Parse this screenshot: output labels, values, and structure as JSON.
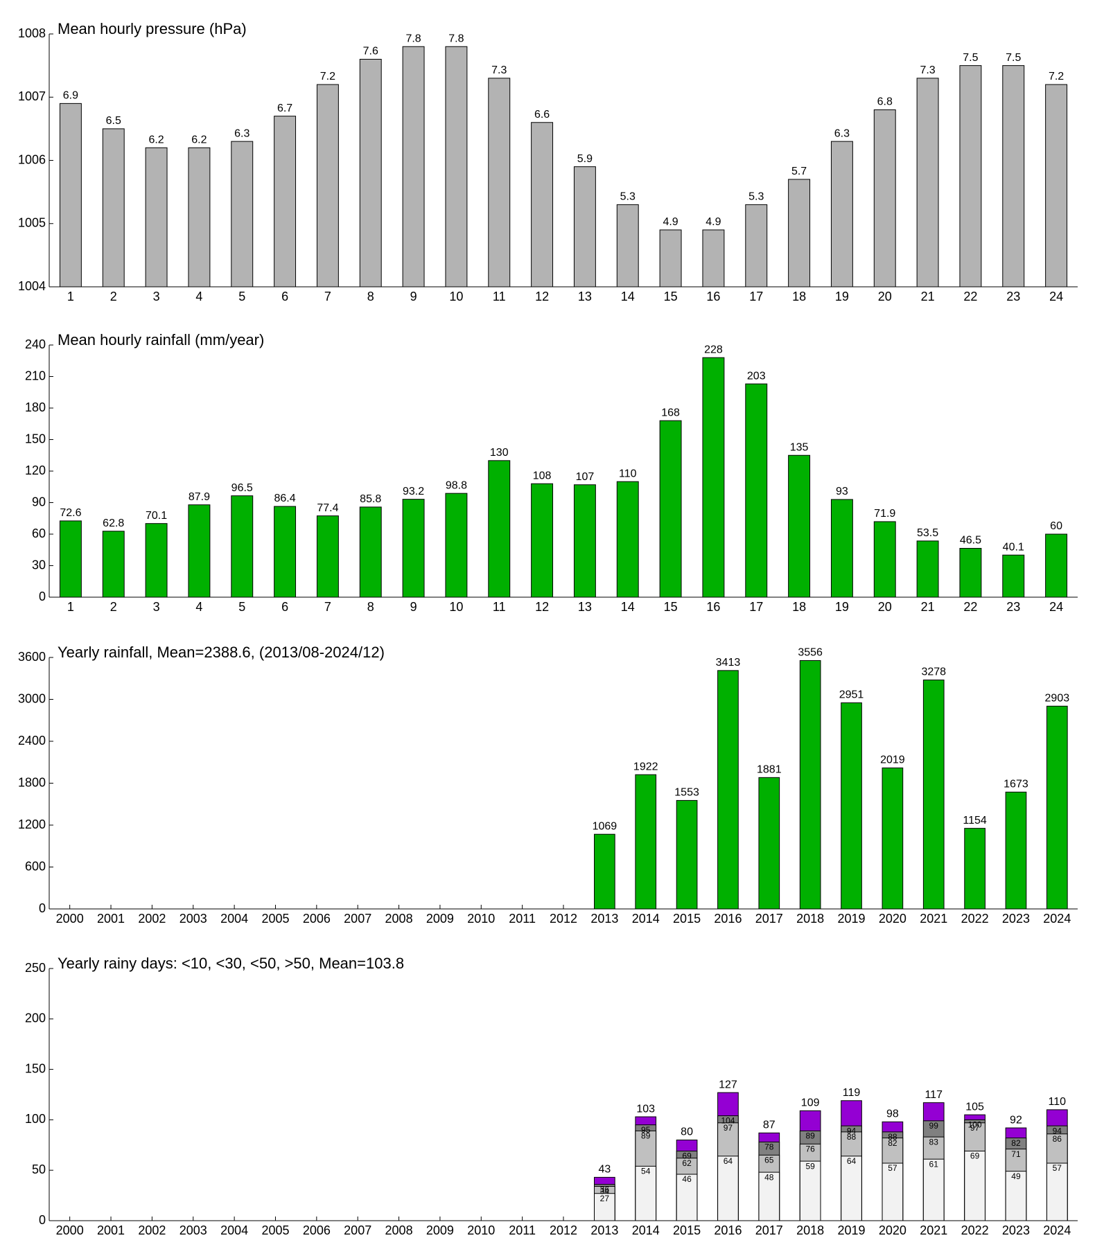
{
  "chart_data": [
    {
      "type": "bar",
      "title": "Mean hourly pressure (hPa)",
      "categories": [
        "1",
        "2",
        "3",
        "4",
        "5",
        "6",
        "7",
        "8",
        "9",
        "10",
        "11",
        "12",
        "13",
        "14",
        "15",
        "16",
        "17",
        "18",
        "19",
        "20",
        "21",
        "22",
        "23",
        "24"
      ],
      "values": [
        1006.9,
        1006.5,
        1006.2,
        1006.2,
        1006.3,
        1006.7,
        1007.2,
        1007.6,
        1007.8,
        1007.8,
        1007.3,
        1006.6,
        1005.9,
        1005.3,
        1004.9,
        1004.9,
        1005.3,
        1005.7,
        1006.3,
        1006.8,
        1007.3,
        1007.5,
        1007.5,
        1007.2
      ],
      "value_labels": [
        "6.9",
        "6.5",
        "6.2",
        "6.2",
        "6.3",
        "6.7",
        "7.2",
        "7.6",
        "7.8",
        "7.8",
        "7.3",
        "6.6",
        "5.9",
        "5.3",
        "4.9",
        "4.9",
        "5.3",
        "5.7",
        "6.3",
        "6.8",
        "7.3",
        "7.5",
        "7.5",
        "7.2"
      ],
      "color": "#b3b3b3",
      "ylim": [
        1004,
        1008
      ],
      "yticks": [
        1004,
        1005,
        1006,
        1007,
        1008
      ]
    },
    {
      "type": "bar",
      "title": "Mean hourly rainfall (mm/year)",
      "categories": [
        "1",
        "2",
        "3",
        "4",
        "5",
        "6",
        "7",
        "8",
        "9",
        "10",
        "11",
        "12",
        "13",
        "14",
        "15",
        "16",
        "17",
        "18",
        "19",
        "20",
        "21",
        "22",
        "23",
        "24"
      ],
      "values": [
        72.6,
        62.8,
        70.1,
        87.9,
        96.5,
        86.4,
        77.4,
        85.8,
        93.2,
        98.8,
        130,
        108,
        107,
        110,
        168,
        228,
        203,
        135,
        93,
        71.9,
        53.5,
        46.5,
        40.1,
        60
      ],
      "color": "#00b000",
      "ylim": [
        0,
        240
      ],
      "yticks": [
        0,
        30,
        60,
        90,
        120,
        150,
        180,
        210,
        240
      ]
    },
    {
      "type": "bar",
      "title": "Yearly rainfall, Mean=2388.6, (2013/08-2024/12)",
      "categories": [
        "2000",
        "2001",
        "2002",
        "2003",
        "2004",
        "2005",
        "2006",
        "2007",
        "2008",
        "2009",
        "2010",
        "2011",
        "2012",
        "2013",
        "2014",
        "2015",
        "2016",
        "2017",
        "2018",
        "2019",
        "2020",
        "2021",
        "2022",
        "2023",
        "2024"
      ],
      "values": [
        null,
        null,
        null,
        null,
        null,
        null,
        null,
        null,
        null,
        null,
        null,
        null,
        null,
        1069,
        1922,
        1553,
        3413,
        1881,
        3556,
        2951,
        2019,
        3278,
        1154,
        1673,
        2903
      ],
      "color": "#00b000",
      "ylim": [
        0,
        3600
      ],
      "yticks": [
        0,
        600,
        1200,
        1800,
        2400,
        3000,
        3600
      ]
    },
    {
      "type": "bar",
      "title": "Yearly rainy days: <10, <30, <50, >50, Mean=103.8",
      "categories": [
        "2000",
        "2001",
        "2002",
        "2003",
        "2004",
        "2005",
        "2006",
        "2007",
        "2008",
        "2009",
        "2010",
        "2011",
        "2012",
        "2013",
        "2014",
        "2015",
        "2016",
        "2017",
        "2018",
        "2019",
        "2020",
        "2021",
        "2022",
        "2023",
        "2024"
      ],
      "series": [
        {
          "color": "#f2f2f2",
          "values": [
            null,
            null,
            null,
            null,
            null,
            null,
            null,
            null,
            null,
            null,
            null,
            null,
            null,
            27,
            54,
            46,
            64,
            48,
            59,
            64,
            57,
            61,
            69,
            49,
            57
          ]
        },
        {
          "color": "#c0c0c0",
          "values": [
            null,
            null,
            null,
            null,
            null,
            null,
            null,
            null,
            null,
            null,
            null,
            null,
            null,
            34,
            89,
            62,
            97,
            65,
            76,
            88,
            82,
            83,
            97,
            71,
            86
          ]
        },
        {
          "color": "#808080",
          "values": [
            null,
            null,
            null,
            null,
            null,
            null,
            null,
            null,
            null,
            null,
            null,
            null,
            null,
            36,
            95,
            69,
            104,
            78,
            89,
            94,
            88,
            99,
            100,
            82,
            94
          ]
        },
        {
          "color": "#9400d3",
          "values": [
            null,
            null,
            null,
            null,
            null,
            null,
            null,
            null,
            null,
            null,
            null,
            null,
            null,
            43,
            103,
            80,
            127,
            87,
            109,
            119,
            98,
            117,
            105,
            92,
            110
          ]
        }
      ],
      "ylim": [
        0,
        250
      ],
      "yticks": [
        0,
        50,
        100,
        150,
        200,
        250
      ]
    }
  ]
}
